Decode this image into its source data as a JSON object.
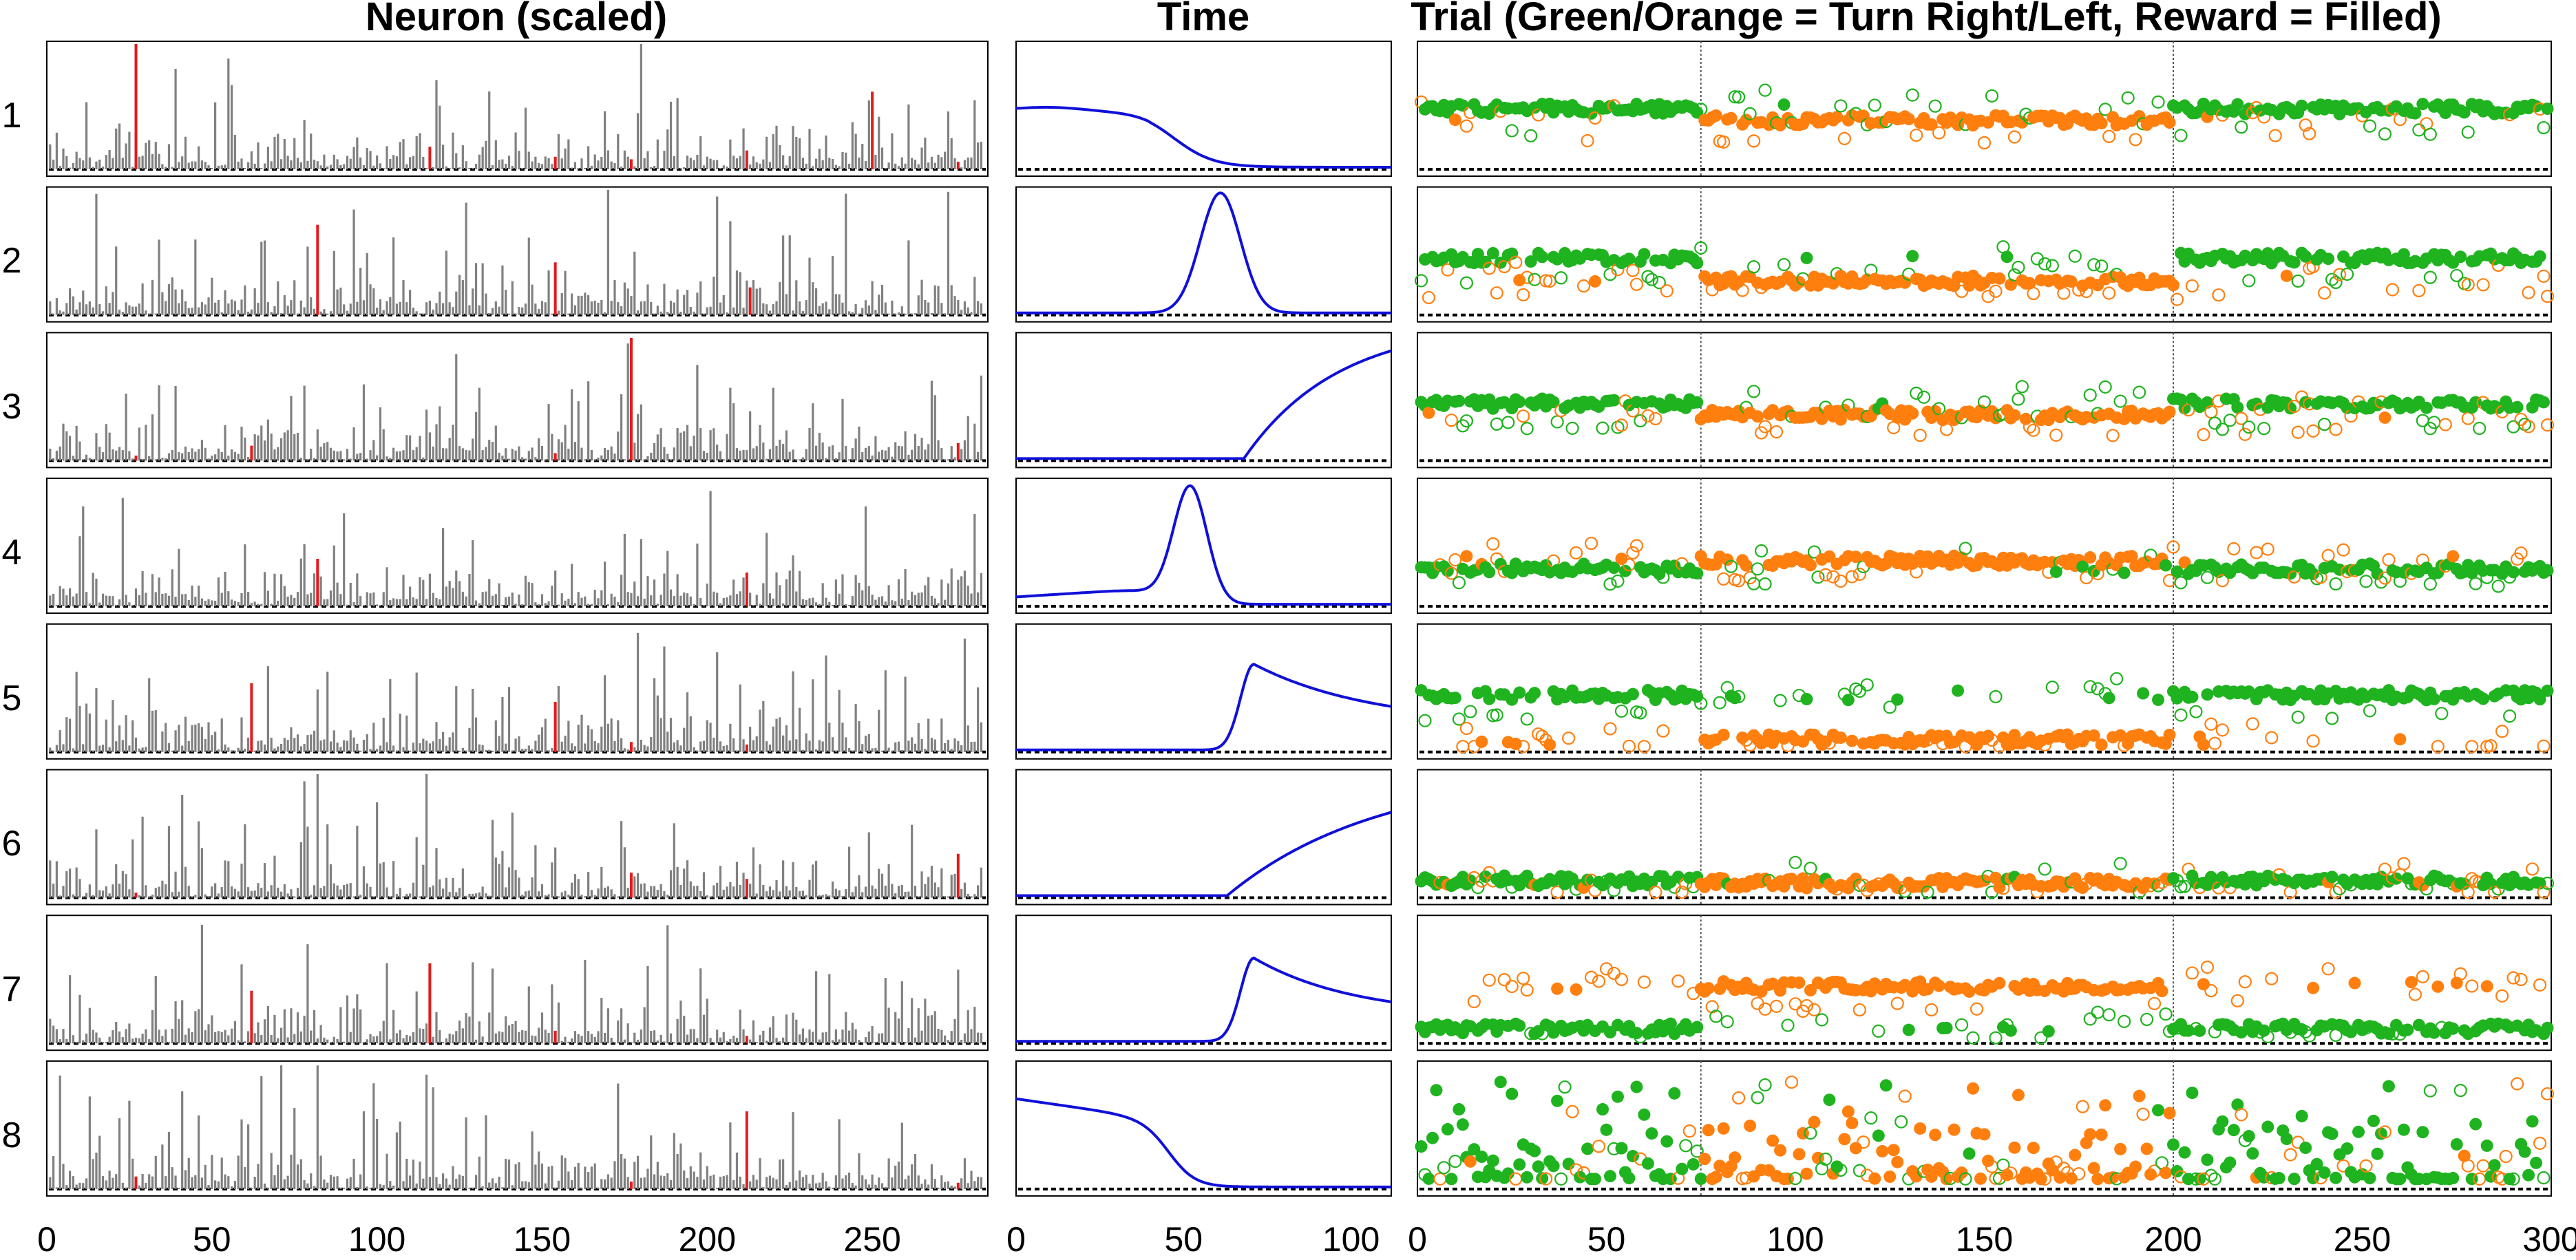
{
  "colors": {
    "neuron_bar": "#808080",
    "neuron_highlight": "#e41a1c",
    "time_curve": "#1010d8",
    "right_turn": "#1fb31f",
    "left_turn": "#ff7f0e",
    "baseline": "#000000",
    "block_divider": "#555555"
  },
  "chart_data": [
    {
      "id": "neuron",
      "type": "bar",
      "title": "Neuron (scaled)",
      "xlabel": "",
      "ylabel": "",
      "xlim": [
        0,
        285
      ],
      "xticks": [
        0,
        50,
        100,
        150,
        200,
        250
      ],
      "rows": [
        "1",
        "2",
        "3",
        "4",
        "5",
        "6",
        "7",
        "8"
      ],
      "highlight_positions": [
        [
          27,
          116,
          154,
          177,
          212,
          250,
          276
        ],
        [
          82,
          154,
          213
        ],
        [
          27,
          62,
          154,
          177,
          276
        ],
        [
          82,
          212
        ],
        [
          62,
          154,
          177,
          212
        ],
        [
          27,
          177,
          212,
          276
        ],
        [
          62,
          116,
          154,
          212
        ],
        [
          27,
          177,
          212,
          276
        ]
      ],
      "highlight_values": [
        [
          1.0,
          0.18,
          0.1,
          0.08,
          0.15,
          0.62,
          0.06
        ],
        [
          0.72,
          0.42,
          0.22
        ],
        [
          0.04,
          0.12,
          0.06,
          0.98,
          0.14
        ],
        [
          0.38,
          0.27
        ],
        [
          0.55,
          0.4,
          0.08,
          0.06
        ],
        [
          0.04,
          0.2,
          0.15,
          0.35
        ],
        [
          0.42,
          0.64,
          0.1,
          0.06
        ],
        [
          0.1,
          0.06,
          0.62,
          0.05
        ]
      ]
    },
    {
      "id": "time",
      "type": "line",
      "title": "Time",
      "xlabel": "",
      "ylabel": "",
      "xlim": [
        0,
        112
      ],
      "xticks": [
        0,
        50,
        100
      ],
      "rows": [
        "1",
        "2",
        "3",
        "4",
        "5",
        "6",
        "7",
        "8"
      ],
      "curves": [
        {
          "kind": "falling",
          "level": 0.48,
          "edge": 47,
          "width": 6
        },
        {
          "kind": "peak",
          "center": 61,
          "width": 6,
          "height": 0.98
        },
        {
          "kind": "rising",
          "start": 68,
          "tau": 28,
          "height": 0.88
        },
        {
          "kind": "peak",
          "center": 52,
          "width": 5,
          "height": 0.95,
          "baseline_before": 0.15
        },
        {
          "kind": "peak_decay",
          "center": 71,
          "rise": 4,
          "tau": 35,
          "height": 0.7,
          "tail": 0.2
        },
        {
          "kind": "rising",
          "start": 63,
          "tau": 45,
          "height": 0.68
        },
        {
          "kind": "peak_decay",
          "center": 71,
          "rise": 4,
          "tau": 30,
          "height": 0.68,
          "tail": 0.2
        },
        {
          "kind": "sigmoid_drop",
          "level": 0.72,
          "edge": 46,
          "width": 4
        }
      ]
    },
    {
      "id": "trial",
      "type": "scatter",
      "title": "Trial (Green/Orange = Turn Right/Left, Reward = Filled)",
      "xlabel": "",
      "ylabel": "",
      "xlim": [
        0,
        300
      ],
      "xticks": [
        0,
        50,
        100,
        150,
        200,
        250,
        300
      ],
      "block_boundaries": [
        75,
        200
      ],
      "rows": [
        "1",
        "2",
        "3",
        "4",
        "5",
        "6",
        "7",
        "8"
      ],
      "legend": {
        "green": "Turn Right",
        "orange": "Turn Left",
        "filled": "Reward"
      },
      "row_levels": [
        {
          "right": 0.48,
          "left": 0.38
        },
        {
          "right": 0.45,
          "left": 0.25
        },
        {
          "right": 0.45,
          "left": 0.35
        },
        {
          "right": 0.28,
          "left": 0.35
        },
        {
          "right": 0.45,
          "left": 0.06
        },
        {
          "right": 0.1,
          "left": 0.08
        },
        {
          "right": 0.08,
          "left": 0.45
        },
        {
          "right": 0.08,
          "left": 0.08
        }
      ]
    }
  ]
}
